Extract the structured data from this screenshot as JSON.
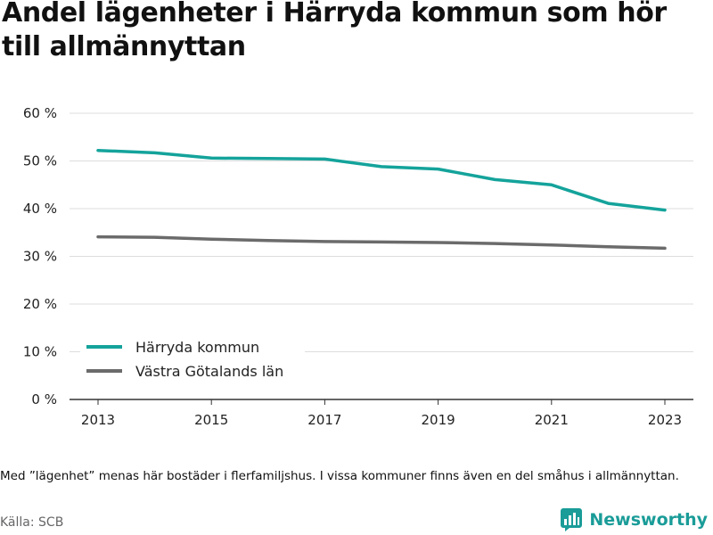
{
  "title": "Andel lägenheter i Härryda kommun som hör till allmännyttan",
  "note": "Med ”lägenhet” menas här bostäder i flerfamiljshus. I vissa kommuner finns även en del småhus i allmännyttan.",
  "source": "Källa: SCB",
  "brand": {
    "name": "Newsworthy",
    "icon": "bar-chart-logo-icon",
    "color": "#1a9c98"
  },
  "chart_data": {
    "type": "line",
    "title": "",
    "xlabel": "",
    "ylabel": "",
    "x": [
      2013,
      2014,
      2015,
      2016,
      2017,
      2018,
      2019,
      2020,
      2021,
      2022,
      2023
    ],
    "series": [
      {
        "name": "Härryda kommun",
        "color": "#14a39b",
        "values": [
          52.2,
          51.7,
          50.6,
          50.5,
          50.4,
          48.8,
          48.3,
          46.1,
          45.0,
          41.1,
          39.7
        ]
      },
      {
        "name": "Västra Götalands län",
        "color": "#6b6b6b",
        "values": [
          34.1,
          34.0,
          33.6,
          33.3,
          33.1,
          33.0,
          32.9,
          32.7,
          32.4,
          32.0,
          31.7
        ]
      }
    ],
    "ylim": [
      0,
      60
    ],
    "yticks": [
      0,
      10,
      20,
      30,
      40,
      50,
      60
    ],
    "ytick_labels": [
      "0 %",
      "10 %",
      "20 %",
      "30 %",
      "40 %",
      "50 %",
      "60 %"
    ],
    "xticks": [
      2013,
      2015,
      2017,
      2019,
      2021,
      2023
    ],
    "xtick_labels": [
      "2013",
      "2015",
      "2017",
      "2019",
      "2021",
      "2023"
    ],
    "grid": true,
    "legend_position": "bottom-left",
    "colors": {
      "grid": "#dddddd",
      "axis": "#333333"
    }
  }
}
